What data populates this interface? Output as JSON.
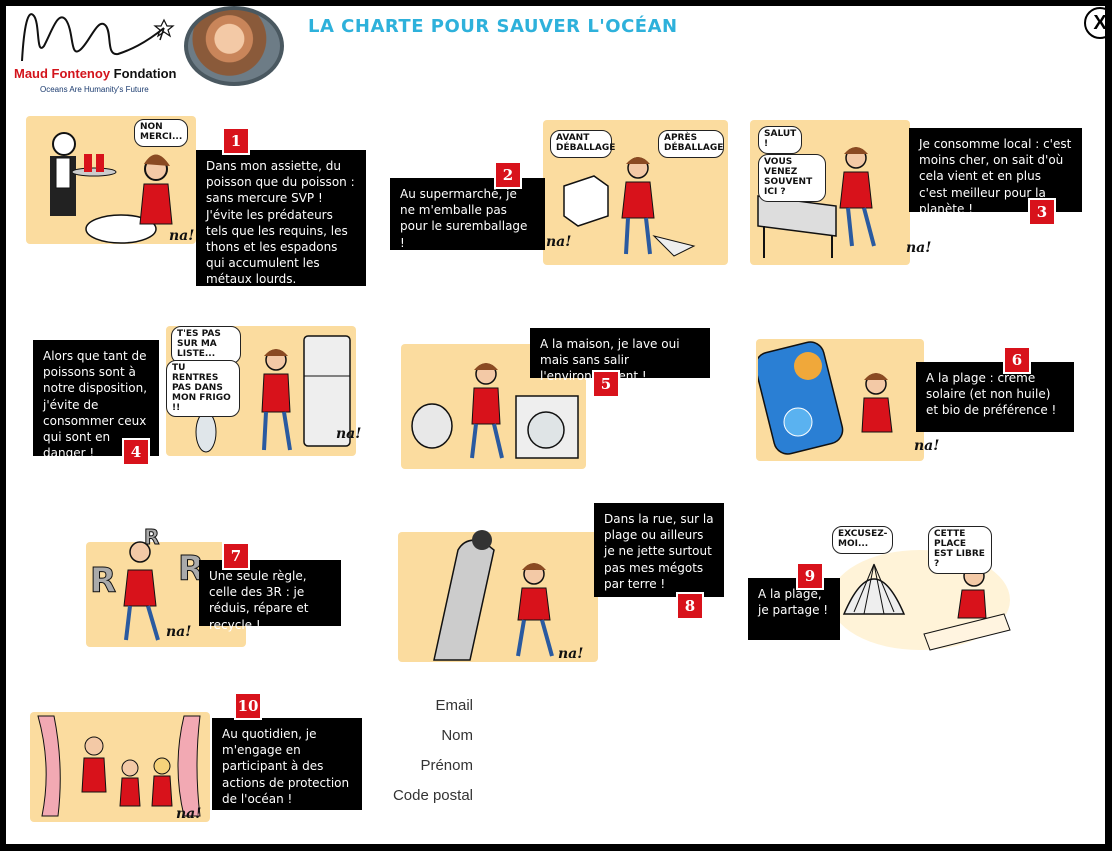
{
  "header": {
    "org_name_red": "Maud Fontenoy",
    "org_name_black": "Fondation",
    "tagline": "Oceans Are Humanity's Future",
    "title": "LA CHARTE POUR SAUVER L'OCÉAN",
    "close_label": "X"
  },
  "panels": [
    {
      "number": "1",
      "caption": "Dans mon assiette, du poisson que du poisson : sans mercure SVP ! J'évite les prédateurs tels que les requins, les thons et les espadons qui accumulent les métaux lourds.",
      "bubbles": [
        "NON MERCI..."
      ]
    },
    {
      "number": "2",
      "caption": "Au supermarché, je ne m'emballe pas pour le suremballage !",
      "bubbles": [
        "AVANT DÉBALLAGE",
        "APRÈS DÉBALLAGE"
      ]
    },
    {
      "number": "3",
      "caption": "Je consomme local : c'est moins cher, on sait d'où cela vient et en plus c'est meilleur pour la planète !",
      "bubbles": [
        "SALUT !",
        "VOUS VENEZ SOUVENT ICI ?"
      ]
    },
    {
      "number": "4",
      "caption": "Alors que tant de poissons sont à notre disposition, j'évite de consommer ceux qui sont en danger !",
      "bubbles": [
        "T'ES PAS SUR MA LISTE...",
        "TU RENTRES PAS DANS MON FRIGO !!"
      ]
    },
    {
      "number": "5",
      "caption": "A la maison, je lave oui mais sans salir l'environnement !",
      "bubbles": []
    },
    {
      "number": "6",
      "caption": "A la plage : crème solaire (et non huile) et bio de préférence !",
      "bubbles": []
    },
    {
      "number": "7",
      "caption": "Une seule règle, celle des 3R : je réduis, répare et recycle !",
      "bubbles": []
    },
    {
      "number": "8",
      "caption": "Dans la rue, sur la plage ou ailleurs je ne jette surtout pas mes mégots par terre !",
      "bubbles": []
    },
    {
      "number": "9",
      "caption": "A la plage, je partage !",
      "bubbles": [
        "EXCUSEZ-MOI...",
        "CETTE PLACE EST LIBRE ?"
      ]
    },
    {
      "number": "10",
      "caption": "Au quotidien, je m'engage en participant à des actions de protection de l'océan !",
      "bubbles": []
    }
  ],
  "signature": "na!",
  "form": {
    "email_label": "Email",
    "nom_label": "Nom",
    "prenom_label": "Prénom",
    "code_postal_label": "Code postal"
  },
  "colors": {
    "accent_red": "#d8121b",
    "title_blue": "#2eb1db",
    "scene_yellow": "#fbdc9f"
  }
}
